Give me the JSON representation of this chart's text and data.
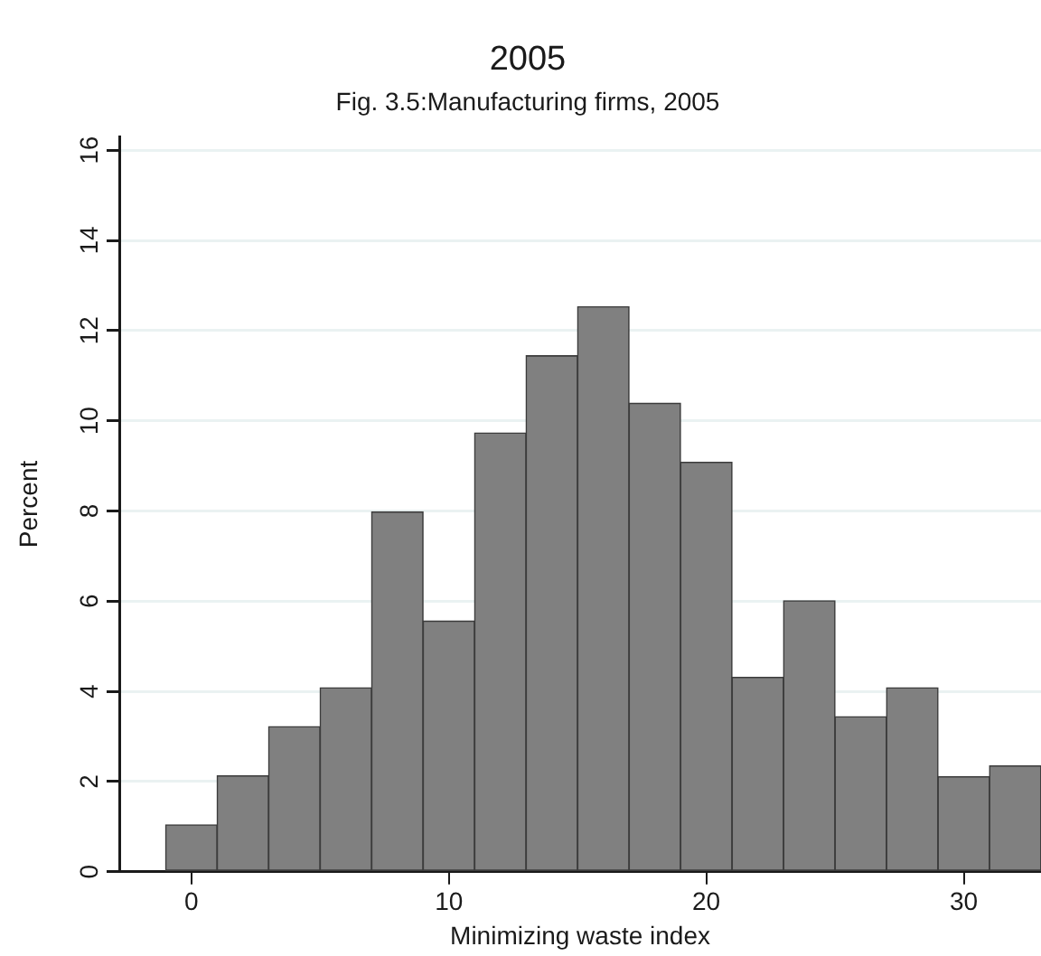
{
  "chart_data": {
    "type": "histogram",
    "title": "2005",
    "subtitle": "Fig. 3.5:Manufacturing firms, 2005",
    "xlabel": "Minimizing waste index",
    "ylabel": "Percent",
    "bins": [
      -1,
      1,
      3,
      5,
      7,
      9,
      11,
      13,
      15,
      17,
      19,
      21,
      23,
      25,
      27,
      29,
      31,
      33
    ],
    "values": [
      1.04,
      2.13,
      3.22,
      4.08,
      7.98,
      5.56,
      9.73,
      11.44,
      12.53,
      10.39,
      9.08,
      4.31,
      6.01,
      3.44,
      4.08,
      2.11,
      2.35
    ],
    "color": "#808080",
    "xlim": [
      -2.8,
      33
    ],
    "xticks": [
      0,
      10,
      20,
      30
    ],
    "ylim": [
      0,
      16.3
    ],
    "yticks": [
      0,
      2,
      4,
      6,
      8,
      10,
      12,
      14,
      16
    ],
    "grid": "y",
    "legend": false
  }
}
